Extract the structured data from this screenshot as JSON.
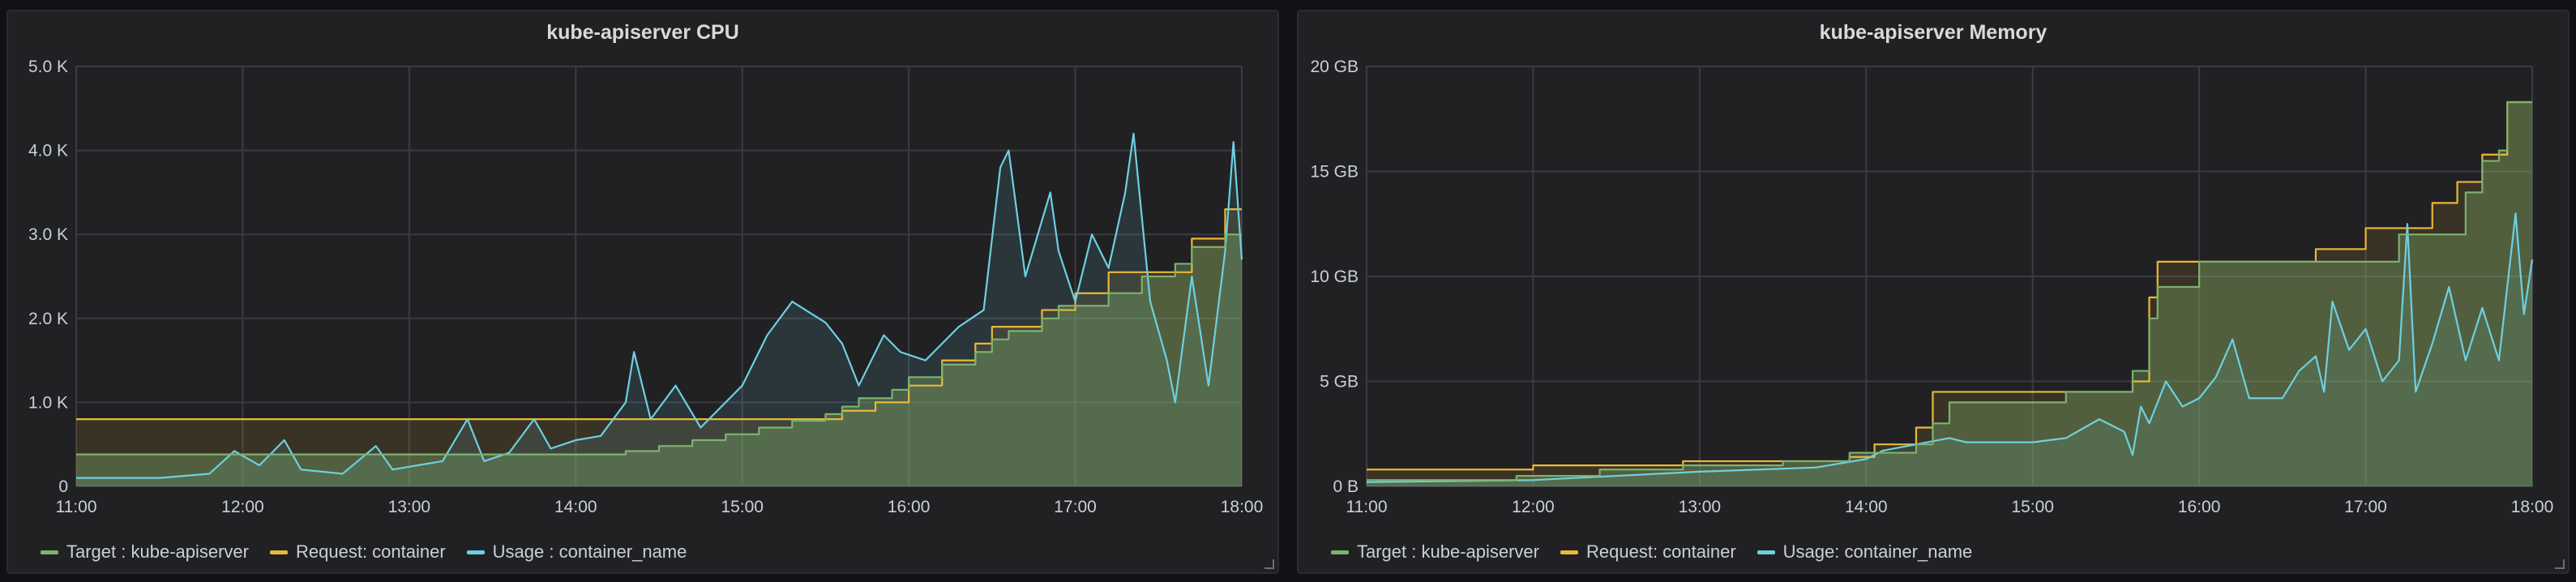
{
  "chart_data": [
    {
      "type": "area",
      "title": "kube-apiserver CPU",
      "x_ticks": [
        "11:00",
        "12:00",
        "13:00",
        "14:00",
        "15:00",
        "16:00",
        "17:00",
        "18:00"
      ],
      "y_ticks": [
        "0",
        "1.0 K",
        "2.0 K",
        "3.0 K",
        "4.0 K",
        "5.0 K"
      ],
      "xlim": [
        11,
        18
      ],
      "ylim": [
        0,
        5000
      ],
      "grid": true,
      "legend": "bottom-left",
      "series": [
        {
          "name": "Target : kube-apiserver",
          "color": "#7eb26d",
          "style": "step",
          "points": [
            [
              11,
              380
            ],
            [
              13.2,
              380
            ],
            [
              14.3,
              420
            ],
            [
              14.5,
              480
            ],
            [
              14.7,
              550
            ],
            [
              14.9,
              620
            ],
            [
              15.1,
              700
            ],
            [
              15.3,
              780
            ],
            [
              15.5,
              860
            ],
            [
              15.6,
              950
            ],
            [
              15.7,
              1050
            ],
            [
              15.9,
              1150
            ],
            [
              16.0,
              1300
            ],
            [
              16.2,
              1450
            ],
            [
              16.4,
              1600
            ],
            [
              16.5,
              1750
            ],
            [
              16.6,
              1850
            ],
            [
              16.8,
              2000
            ],
            [
              16.9,
              2150
            ],
            [
              17.2,
              2300
            ],
            [
              17.4,
              2500
            ],
            [
              17.6,
              2650
            ],
            [
              17.7,
              2850
            ],
            [
              17.9,
              3000
            ],
            [
              18,
              3000
            ]
          ]
        },
        {
          "name": "Request: container",
          "color": "#eab839",
          "style": "step",
          "points": [
            [
              11,
              800
            ],
            [
              15.5,
              800
            ],
            [
              15.6,
              900
            ],
            [
              15.8,
              1000
            ],
            [
              16.0,
              1200
            ],
            [
              16.2,
              1500
            ],
            [
              16.4,
              1700
            ],
            [
              16.5,
              1900
            ],
            [
              16.8,
              2100
            ],
            [
              17.0,
              2300
            ],
            [
              17.2,
              2550
            ],
            [
              17.7,
              2950
            ],
            [
              17.9,
              3300
            ],
            [
              18,
              3300
            ]
          ]
        },
        {
          "name": "Usage : container_name",
          "color": "#6ed0e0",
          "style": "line",
          "points": [
            [
              11,
              100
            ],
            [
              11.5,
              100
            ],
            [
              11.8,
              150
            ],
            [
              11.95,
              420
            ],
            [
              12.1,
              250
            ],
            [
              12.25,
              550
            ],
            [
              12.35,
              200
            ],
            [
              12.6,
              150
            ],
            [
              12.8,
              480
            ],
            [
              12.9,
              200
            ],
            [
              13.2,
              300
            ],
            [
              13.35,
              800
            ],
            [
              13.45,
              300
            ],
            [
              13.6,
              400
            ],
            [
              13.75,
              800
            ],
            [
              13.85,
              450
            ],
            [
              14.0,
              550
            ],
            [
              14.15,
              600
            ],
            [
              14.3,
              1000
            ],
            [
              14.35,
              1600
            ],
            [
              14.45,
              800
            ],
            [
              14.6,
              1200
            ],
            [
              14.75,
              700
            ],
            [
              14.9,
              1000
            ],
            [
              15.0,
              1200
            ],
            [
              15.15,
              1800
            ],
            [
              15.3,
              2200
            ],
            [
              15.5,
              1950
            ],
            [
              15.6,
              1700
            ],
            [
              15.7,
              1200
            ],
            [
              15.85,
              1800
            ],
            [
              15.95,
              1600
            ],
            [
              16.1,
              1500
            ],
            [
              16.3,
              1900
            ],
            [
              16.45,
              2100
            ],
            [
              16.55,
              3800
            ],
            [
              16.6,
              4000
            ],
            [
              16.7,
              2500
            ],
            [
              16.85,
              3500
            ],
            [
              16.9,
              2800
            ],
            [
              17.0,
              2200
            ],
            [
              17.1,
              3000
            ],
            [
              17.2,
              2600
            ],
            [
              17.3,
              3500
            ],
            [
              17.35,
              4200
            ],
            [
              17.45,
              2200
            ],
            [
              17.55,
              1500
            ],
            [
              17.6,
              1000
            ],
            [
              17.7,
              2500
            ],
            [
              17.8,
              1200
            ],
            [
              17.9,
              2800
            ],
            [
              17.95,
              4100
            ],
            [
              18.0,
              2700
            ]
          ]
        }
      ]
    },
    {
      "type": "area",
      "title": "kube-apiserver Memory",
      "x_ticks": [
        "11:00",
        "12:00",
        "13:00",
        "14:00",
        "15:00",
        "16:00",
        "17:00",
        "18:00"
      ],
      "y_ticks": [
        "0 B",
        "5 GB",
        "10 GB",
        "15 GB",
        "20 GB"
      ],
      "xlim": [
        11,
        18
      ],
      "ylim": [
        0,
        20
      ],
      "grid": true,
      "legend": "bottom-left",
      "series": [
        {
          "name": "Target : kube-apiserver",
          "color": "#7eb26d",
          "style": "step",
          "points": [
            [
              11,
              0.3
            ],
            [
              11.9,
              0.5
            ],
            [
              12.4,
              0.8
            ],
            [
              12.9,
              1.0
            ],
            [
              13.5,
              1.2
            ],
            [
              13.9,
              1.6
            ],
            [
              14.3,
              2.0
            ],
            [
              14.4,
              3.0
            ],
            [
              14.5,
              4.0
            ],
            [
              15.2,
              4.5
            ],
            [
              15.6,
              5.5
            ],
            [
              15.7,
              8.0
            ],
            [
              15.75,
              9.5
            ],
            [
              16.0,
              10.7
            ],
            [
              16.8,
              10.7
            ],
            [
              17.2,
              12.0
            ],
            [
              17.6,
              14.0
            ],
            [
              17.7,
              15.5
            ],
            [
              17.8,
              16.0
            ],
            [
              17.85,
              18.3
            ],
            [
              18,
              18.3
            ]
          ]
        },
        {
          "name": "Request: container",
          "color": "#eab839",
          "style": "step",
          "points": [
            [
              11,
              0.8
            ],
            [
              12.0,
              1.0
            ],
            [
              12.9,
              1.2
            ],
            [
              13.9,
              1.4
            ],
            [
              14.05,
              2.0
            ],
            [
              14.3,
              2.8
            ],
            [
              14.4,
              4.5
            ],
            [
              15.2,
              4.5
            ],
            [
              15.6,
              5.0
            ],
            [
              15.7,
              9.0
            ],
            [
              15.75,
              10.7
            ],
            [
              16.7,
              11.3
            ],
            [
              17.0,
              12.3
            ],
            [
              17.4,
              13.5
            ],
            [
              17.55,
              14.5
            ],
            [
              17.7,
              15.8
            ],
            [
              17.85,
              18.3
            ],
            [
              18,
              18.3
            ]
          ]
        },
        {
          "name": "Usage: container_name",
          "color": "#6ed0e0",
          "style": "line",
          "points": [
            [
              11,
              0.2
            ],
            [
              12.0,
              0.3
            ],
            [
              13.0,
              0.7
            ],
            [
              13.7,
              0.9
            ],
            [
              14.0,
              1.3
            ],
            [
              14.1,
              1.7
            ],
            [
              14.3,
              2.0
            ],
            [
              14.5,
              2.3
            ],
            [
              14.6,
              2.1
            ],
            [
              15.0,
              2.1
            ],
            [
              15.2,
              2.3
            ],
            [
              15.4,
              3.2
            ],
            [
              15.55,
              2.6
            ],
            [
              15.6,
              1.5
            ],
            [
              15.65,
              3.8
            ],
            [
              15.7,
              3.0
            ],
            [
              15.8,
              5.0
            ],
            [
              15.9,
              3.8
            ],
            [
              16.0,
              4.2
            ],
            [
              16.1,
              5.2
            ],
            [
              16.2,
              7.0
            ],
            [
              16.3,
              4.2
            ],
            [
              16.5,
              4.2
            ],
            [
              16.6,
              5.5
            ],
            [
              16.7,
              6.2
            ],
            [
              16.75,
              4.5
            ],
            [
              16.8,
              8.8
            ],
            [
              16.9,
              6.5
            ],
            [
              17.0,
              7.5
            ],
            [
              17.1,
              5.0
            ],
            [
              17.2,
              6.0
            ],
            [
              17.25,
              12.5
            ],
            [
              17.3,
              4.5
            ],
            [
              17.4,
              6.8
            ],
            [
              17.5,
              9.5
            ],
            [
              17.6,
              6.0
            ],
            [
              17.7,
              8.5
            ],
            [
              17.8,
              6.0
            ],
            [
              17.9,
              13.0
            ],
            [
              17.95,
              8.2
            ],
            [
              18.0,
              10.8
            ]
          ]
        }
      ]
    }
  ],
  "colors": {
    "target": "#7eb26d",
    "request": "#eab839",
    "usage": "#6ed0e0",
    "grid": "#3b3c41",
    "panel": "#212124"
  }
}
